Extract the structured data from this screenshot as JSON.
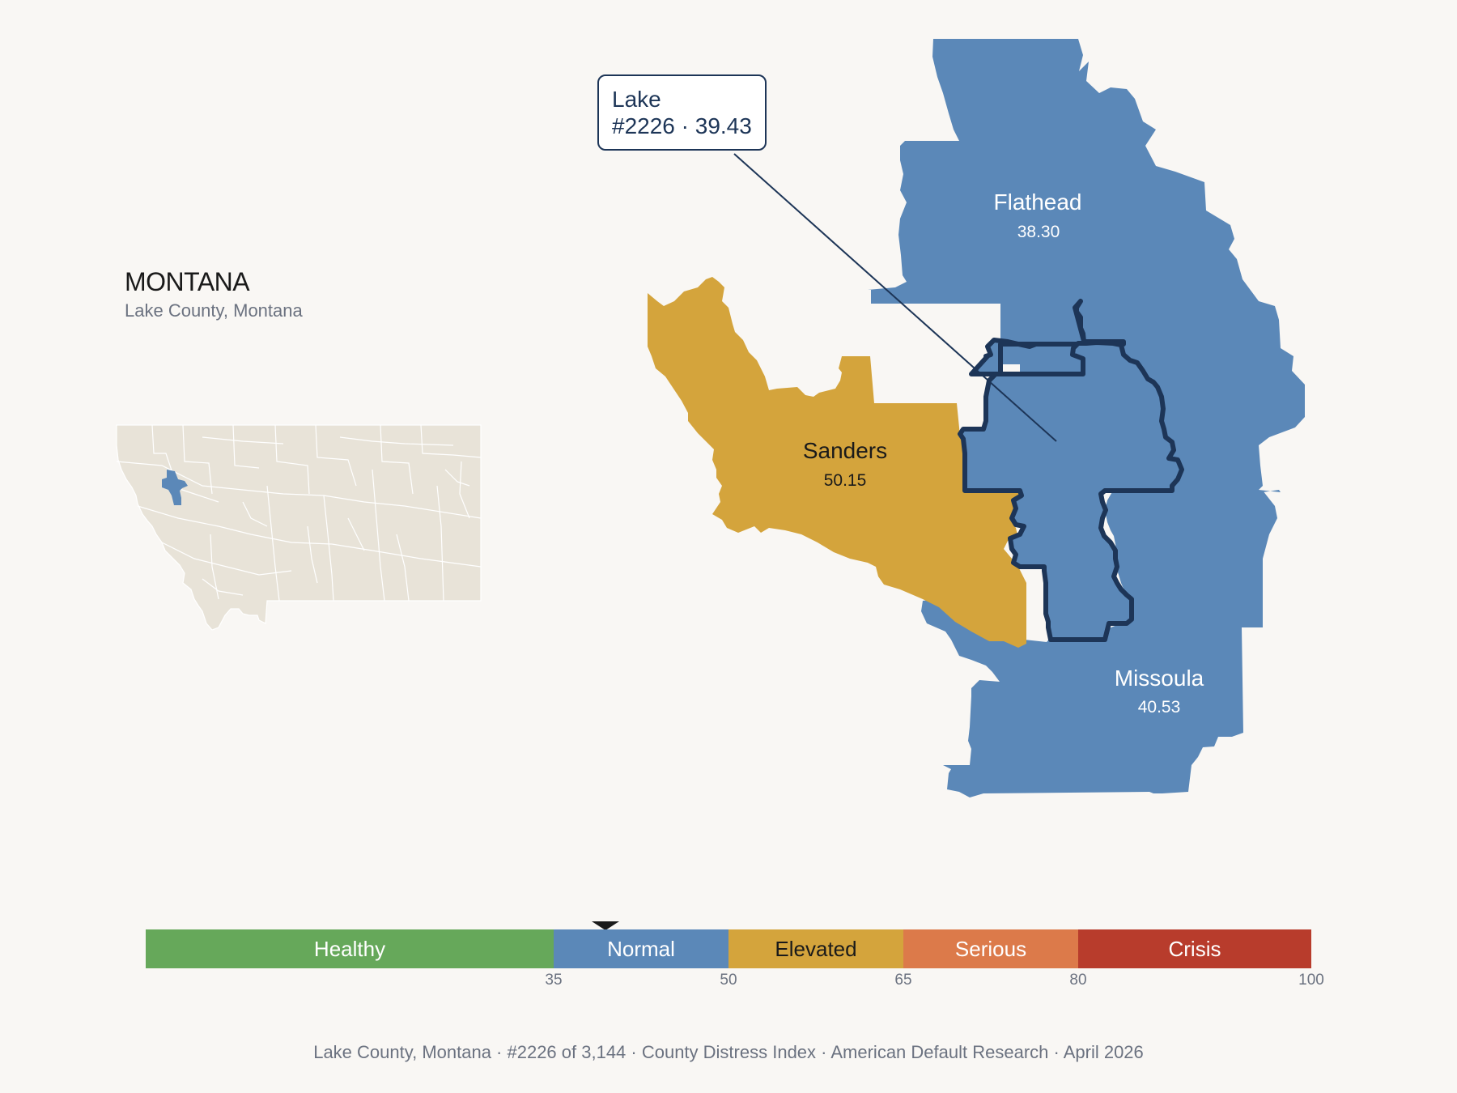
{
  "state": {
    "name": "MONTANA",
    "subtitle": "Lake County, Montana"
  },
  "callout": {
    "county": "Lake",
    "rank_value": "#2226 · 39.43"
  },
  "counties": [
    {
      "name": "Flathead",
      "value": "38.30",
      "category": "Normal"
    },
    {
      "name": "Sanders",
      "value": "50.15",
      "category": "Elevated"
    },
    {
      "name": "Missoula",
      "value": "40.53",
      "category": "Normal"
    },
    {
      "name": "Lake",
      "value": "39.43",
      "category": "Normal",
      "highlighted": true
    }
  ],
  "colors": {
    "normal": "#5b88b8",
    "elevated": "#d4a43c",
    "inset_land": "#e8e3d8",
    "highlight_outline": "#1d3557",
    "background": "#f9f7f4"
  },
  "scale": {
    "segments": [
      {
        "label": "Healthy",
        "from": 0,
        "to": 35,
        "color": "#66a85a",
        "text_color": "#ffffff"
      },
      {
        "label": "Normal",
        "from": 35,
        "to": 50,
        "color": "#5b88b8",
        "text_color": "#ffffff"
      },
      {
        "label": "Elevated",
        "from": 50,
        "to": 65,
        "color": "#d4a43c",
        "text_color": "#1a1a1a"
      },
      {
        "label": "Serious",
        "from": 65,
        "to": 80,
        "color": "#dc7a4a",
        "text_color": "#ffffff"
      },
      {
        "label": "Crisis",
        "from": 80,
        "to": 100,
        "color": "#b83c2c",
        "text_color": "#ffffff"
      }
    ],
    "ticks": [
      "35",
      "50",
      "65",
      "80",
      "100"
    ],
    "marker_value": 39.43
  },
  "footer": "Lake County, Montana  ·  #2226 of 3,144  ·  County Distress Index  ·  American Default Research  ·  April 2026"
}
